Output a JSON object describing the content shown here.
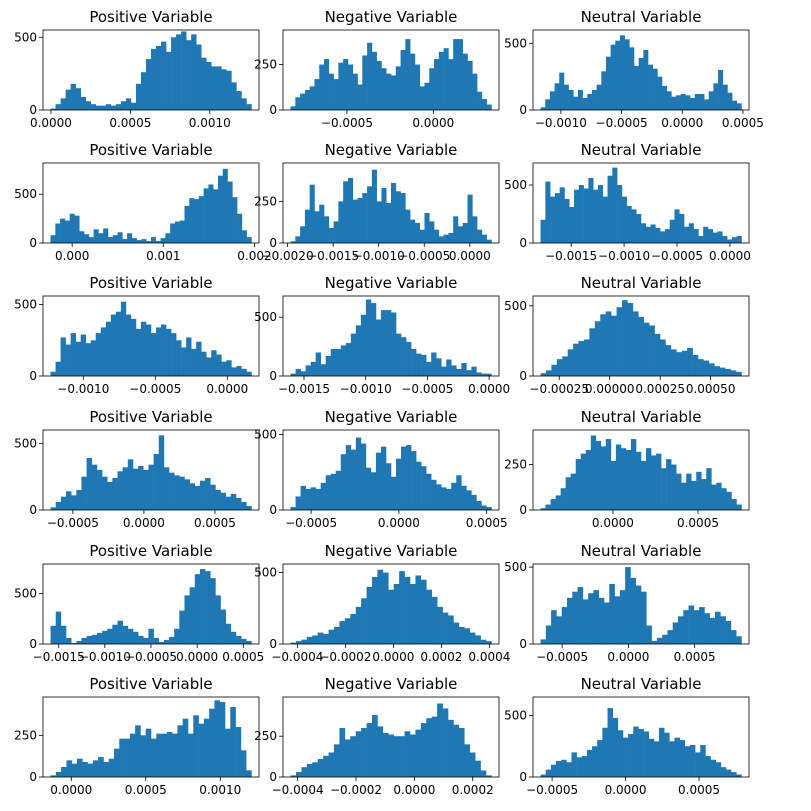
{
  "figure": {
    "bar_color": "#1f77b4",
    "axes_color": "#000000",
    "background": "#ffffff"
  },
  "chart_data": [
    {
      "type": "bar",
      "title": "Positive Variable",
      "xlim": [
        -5e-05,
        0.00131
      ],
      "ylim": [
        0,
        550
      ],
      "xticks": [
        0.0,
        0.0005,
        0.001
      ],
      "xtick_labels": [
        "0.0000",
        "0.0005",
        "0.0010"
      ],
      "yticks": [
        0,
        500
      ],
      "ytick_labels": [
        "0",
        "500"
      ],
      "values": [
        10,
        40,
        80,
        140,
        180,
        150,
        90,
        60,
        40,
        30,
        30,
        40,
        30,
        40,
        60,
        80,
        50,
        180,
        260,
        350,
        420,
        440,
        470,
        400,
        500,
        520,
        540,
        480,
        520,
        450,
        360,
        330,
        300,
        300,
        280,
        270,
        190,
        130,
        80,
        40
      ]
    },
    {
      "type": "bar",
      "title": "Negative Variable",
      "xlim": [
        -0.00087,
        0.00038
      ],
      "ylim": [
        0,
        440
      ],
      "xticks": [
        -0.0005,
        0.0
      ],
      "xtick_labels": [
        "−0.0005",
        "0.0000"
      ],
      "yticks": [
        0,
        250
      ],
      "ytick_labels": [
        "0",
        "250"
      ],
      "values": [
        20,
        70,
        90,
        110,
        130,
        170,
        250,
        280,
        200,
        170,
        260,
        280,
        250,
        200,
        140,
        300,
        370,
        320,
        270,
        230,
        200,
        190,
        240,
        330,
        390,
        310,
        250,
        130,
        150,
        230,
        280,
        320,
        340,
        280,
        390,
        390,
        310,
        270,
        200,
        100,
        60,
        30
      ]
    },
    {
      "type": "bar",
      "title": "Neutral Variable",
      "xlim": [
        -0.00123,
        0.00055
      ],
      "ylim": [
        0,
        600
      ],
      "xticks": [
        -0.001,
        -0.0005,
        0.0,
        0.0005
      ],
      "xtick_labels": [
        "−0.0010",
        "−0.0005",
        "0.0000",
        "0.0005"
      ],
      "yticks": [
        0,
        500
      ],
      "ytick_labels": [
        "0",
        "500"
      ],
      "values": [
        20,
        80,
        140,
        200,
        280,
        190,
        150,
        100,
        150,
        90,
        120,
        150,
        190,
        290,
        400,
        490,
        520,
        560,
        530,
        470,
        330,
        390,
        450,
        340,
        310,
        250,
        180,
        140,
        100,
        110,
        120,
        110,
        90,
        120,
        120,
        80,
        140,
        200,
        300,
        190,
        130,
        70,
        50
      ]
    },
    {
      "type": "bar",
      "title": "Positive Variable",
      "xlim": [
        -0.00032,
        0.00205
      ],
      "ylim": [
        0,
        820
      ],
      "xticks": [
        0.0,
        0.001,
        0.002
      ],
      "xtick_labels": [
        "0.000",
        "0.001",
        "0.002"
      ],
      "yticks": [
        0,
        500
      ],
      "ytick_labels": [
        "0",
        "500"
      ],
      "values": [
        80,
        200,
        250,
        230,
        300,
        280,
        120,
        90,
        60,
        140,
        100,
        150,
        60,
        80,
        110,
        40,
        100,
        50,
        30,
        40,
        20,
        60,
        20,
        50,
        100,
        200,
        220,
        230,
        380,
        460,
        450,
        480,
        560,
        600,
        550,
        690,
        760,
        630,
        470,
        300,
        130,
        60
      ]
    },
    {
      "type": "bar",
      "title": "Negative Variable",
      "xlim": [
        -0.00205,
        0.00032
      ],
      "ylim": [
        0,
        480
      ],
      "xticks": [
        -0.002,
        -0.0015,
        -0.001,
        -0.0005,
        0.0
      ],
      "xtick_labels": [
        "−0.0020",
        "−0.0015",
        "−0.0010",
        "−0.0005",
        "0.0000"
      ],
      "yticks": [
        0,
        250
      ],
      "ytick_labels": [
        "0",
        "250"
      ],
      "values": [
        10,
        40,
        100,
        200,
        350,
        190,
        230,
        160,
        90,
        130,
        250,
        370,
        390,
        260,
        270,
        300,
        340,
        440,
        250,
        330,
        240,
        360,
        310,
        300,
        200,
        140,
        120,
        80,
        180,
        130,
        80,
        40,
        50,
        60,
        160,
        100,
        120,
        290,
        160,
        80,
        50,
        20
      ]
    },
    {
      "type": "bar",
      "title": "Neutral Variable",
      "xlim": [
        -0.00186,
        0.00018
      ],
      "ylim": [
        0,
        690
      ],
      "xticks": [
        -0.0015,
        -0.001,
        -0.0005,
        0.0
      ],
      "xtick_labels": [
        "−0.0015",
        "−0.0010",
        "−0.0005",
        "0.0000"
      ],
      "yticks": [
        0,
        500
      ],
      "ytick_labels": [
        "0",
        "500"
      ],
      "values": [
        200,
        530,
        400,
        430,
        480,
        380,
        310,
        460,
        500,
        470,
        560,
        460,
        500,
        400,
        580,
        650,
        500,
        400,
        320,
        290,
        250,
        170,
        140,
        160,
        130,
        100,
        120,
        200,
        290,
        250,
        140,
        170,
        120,
        60,
        140,
        120,
        90,
        100,
        60,
        30,
        50,
        60
      ]
    },
    {
      "type": "bar",
      "title": "Positive Variable",
      "xlim": [
        -0.00128,
        0.00022
      ],
      "ylim": [
        0,
        560
      ],
      "xticks": [
        -0.001,
        -0.0005,
        0.0
      ],
      "xtick_labels": [
        "−0.0010",
        "−0.0005",
        "0.0000"
      ],
      "yticks": [
        0,
        500
      ],
      "ytick_labels": [
        "0",
        "500"
      ],
      "values": [
        30,
        100,
        270,
        220,
        300,
        240,
        290,
        230,
        250,
        300,
        340,
        380,
        430,
        450,
        520,
        430,
        400,
        330,
        380,
        360,
        300,
        340,
        360,
        330,
        300,
        250,
        200,
        270,
        190,
        240,
        170,
        130,
        180,
        150,
        100,
        110,
        60,
        70,
        50,
        30
      ]
    },
    {
      "type": "bar",
      "title": "Negative Variable",
      "xlim": [
        -0.00167,
        8e-05
      ],
      "ylim": [
        0,
        680
      ],
      "xticks": [
        -0.0015,
        -0.001,
        -0.0005,
        0.0
      ],
      "xtick_labels": [
        "−0.0015",
        "−0.0010",
        "−0.0005",
        "0.0000"
      ],
      "yticks": [
        0,
        500
      ],
      "ytick_labels": [
        "0",
        "500"
      ],
      "values": [
        20,
        60,
        40,
        90,
        120,
        200,
        100,
        170,
        230,
        230,
        260,
        280,
        360,
        430,
        520,
        650,
        620,
        480,
        560,
        560,
        540,
        360,
        330,
        290,
        230,
        190,
        180,
        120,
        200,
        150,
        80,
        140,
        90,
        60,
        110,
        50,
        80,
        30,
        20,
        20
      ]
    },
    {
      "type": "bar",
      "title": "Neutral Variable",
      "xlim": [
        -0.00038,
        0.00069
      ],
      "ylim": [
        0,
        570
      ],
      "xticks": [
        -0.00025,
        0.0,
        0.00025,
        0.0005
      ],
      "xtick_labels": [
        "−0.00025",
        "0.00000",
        "0.00025",
        "0.00050"
      ],
      "yticks": [
        0,
        500
      ],
      "ytick_labels": [
        "0",
        "500"
      ],
      "values": [
        20,
        40,
        80,
        120,
        140,
        190,
        230,
        250,
        260,
        340,
        390,
        440,
        460,
        430,
        490,
        540,
        520,
        460,
        420,
        380,
        360,
        300,
        260,
        220,
        190,
        170,
        180,
        200,
        150,
        120,
        110,
        90,
        70,
        60,
        50,
        40,
        30
      ]
    },
    {
      "type": "bar",
      "title": "Positive Variable",
      "xlim": [
        -0.00071,
        0.00081
      ],
      "ylim": [
        0,
        600
      ],
      "xticks": [
        -0.0005,
        0.0,
        0.0005
      ],
      "xtick_labels": [
        "−0.0005",
        "0.0000",
        "0.0005"
      ],
      "yticks": [
        0,
        500
      ],
      "ytick_labels": [
        "0",
        "500"
      ],
      "values": [
        20,
        60,
        100,
        140,
        110,
        150,
        250,
        390,
        340,
        300,
        250,
        210,
        240,
        290,
        320,
        380,
        310,
        330,
        300,
        340,
        420,
        560,
        320,
        280,
        260,
        250,
        230,
        200,
        180,
        220,
        240,
        190,
        150,
        130,
        100,
        120,
        90,
        60,
        30
      ]
    },
    {
      "type": "bar",
      "title": "Negative Variable",
      "xlim": [
        -0.00066,
        0.00057
      ],
      "ylim": [
        0,
        530
      ],
      "xticks": [
        -0.0005,
        0.0,
        0.0005
      ],
      "xtick_labels": [
        "−0.0005",
        "0.0000",
        "0.0005"
      ],
      "yticks": [
        0,
        500
      ],
      "ytick_labels": [
        "0",
        "500"
      ],
      "values": [
        20,
        90,
        160,
        140,
        150,
        140,
        180,
        230,
        240,
        260,
        370,
        430,
        400,
        480,
        440,
        280,
        250,
        380,
        420,
        310,
        220,
        340,
        420,
        430,
        390,
        320,
        290,
        240,
        200,
        170,
        150,
        140,
        180,
        230,
        160,
        130,
        100,
        60,
        30,
        20
      ]
    },
    {
      "type": "bar",
      "title": "Neutral Variable",
      "xlim": [
        -0.00047,
        0.0008
      ],
      "ylim": [
        0,
        440
      ],
      "xticks": [
        0.0,
        0.0005
      ],
      "xtick_labels": [
        "0.0000",
        "0.0005"
      ],
      "yticks": [
        0,
        250
      ],
      "ytick_labels": [
        "0",
        "250"
      ],
      "values": [
        10,
        30,
        60,
        80,
        120,
        180,
        200,
        280,
        310,
        330,
        410,
        380,
        350,
        390,
        270,
        360,
        340,
        330,
        390,
        320,
        270,
        340,
        300,
        310,
        230,
        280,
        250,
        200,
        150,
        200,
        160,
        210,
        170,
        230,
        140,
        150,
        120,
        100,
        60,
        30
      ]
    },
    {
      "type": "bar",
      "title": "Positive Variable",
      "xlim": [
        -0.00167,
        0.00067
      ],
      "ylim": [
        0,
        790
      ],
      "xticks": [
        -0.0015,
        -0.001,
        -0.0005,
        0.0,
        0.0005
      ],
      "xtick_labels": [
        "−0.0015",
        "−0.0010",
        "−0.0005",
        "0.0000",
        "0.0005"
      ],
      "yticks": [
        0,
        500
      ],
      "ytick_labels": [
        "0",
        "500"
      ],
      "values": [
        180,
        320,
        180,
        60,
        10,
        30,
        60,
        80,
        90,
        110,
        130,
        150,
        190,
        230,
        180,
        150,
        120,
        80,
        60,
        150,
        60,
        20,
        40,
        70,
        150,
        330,
        480,
        560,
        690,
        740,
        720,
        650,
        480,
        340,
        200,
        120,
        80,
        50,
        30
      ]
    },
    {
      "type": "bar",
      "title": "Negative Variable",
      "xlim": [
        -0.00046,
        0.00044
      ],
      "ylim": [
        0,
        560
      ],
      "xticks": [
        -0.0004,
        -0.0002,
        0.0,
        0.0002,
        0.0004
      ],
      "xtick_labels": [
        "−0.0004",
        "−0.0002",
        "0.0000",
        "0.0002",
        "0.0004"
      ],
      "yticks": [
        0,
        500
      ],
      "ytick_labels": [
        "0",
        "500"
      ],
      "values": [
        10,
        20,
        30,
        50,
        60,
        80,
        70,
        100,
        120,
        160,
        180,
        210,
        260,
        320,
        400,
        470,
        520,
        500,
        380,
        420,
        510,
        470,
        420,
        480,
        450,
        380,
        330,
        260,
        220,
        200,
        150,
        120,
        110,
        80,
        60,
        30,
        20
      ]
    },
    {
      "type": "bar",
      "title": "Neutral Variable",
      "xlim": [
        -0.00072,
        0.00091
      ],
      "ylim": [
        0,
        520
      ],
      "xticks": [
        -0.0005,
        0.0,
        0.0005
      ],
      "xtick_labels": [
        "−0.0005",
        "0.0000",
        "0.0005"
      ],
      "yticks": [
        0,
        500
      ],
      "ytick_labels": [
        "0",
        "500"
      ],
      "values": [
        30,
        120,
        220,
        180,
        240,
        300,
        340,
        370,
        290,
        330,
        350,
        300,
        270,
        390,
        310,
        350,
        500,
        430,
        380,
        340,
        120,
        20,
        40,
        60,
        90,
        140,
        180,
        220,
        250,
        220,
        240,
        200,
        170,
        210,
        180,
        150,
        90,
        50
      ]
    },
    {
      "type": "bar",
      "title": "Positive Variable",
      "xlim": [
        -0.00019,
        0.00126
      ],
      "ylim": [
        0,
        480
      ],
      "xticks": [
        0.0,
        0.0005,
        0.001
      ],
      "xtick_labels": [
        "0.0000",
        "0.0005",
        "0.0010"
      ],
      "yticks": [
        0,
        250
      ],
      "ytick_labels": [
        "0",
        "250"
      ],
      "values": [
        10,
        30,
        60,
        100,
        80,
        110,
        90,
        80,
        100,
        120,
        90,
        110,
        170,
        230,
        230,
        260,
        310,
        250,
        290,
        230,
        260,
        260,
        270,
        260,
        310,
        350,
        260,
        370,
        320,
        350,
        410,
        460,
        450,
        290,
        420,
        300,
        160,
        40
      ]
    },
    {
      "type": "bar",
      "title": "Negative Variable",
      "xlim": [
        -0.00045,
        0.00029
      ],
      "ylim": [
        0,
        490
      ],
      "xticks": [
        -0.0004,
        -0.0002,
        0.0,
        0.0002
      ],
      "xtick_labels": [
        "−0.0004",
        "−0.0002",
        "0.0000",
        "0.0002"
      ],
      "yticks": [
        0,
        250
      ],
      "ytick_labels": [
        "0",
        "250"
      ],
      "values": [
        10,
        30,
        60,
        80,
        90,
        110,
        130,
        150,
        200,
        300,
        230,
        250,
        280,
        300,
        330,
        380,
        310,
        270,
        260,
        250,
        250,
        280,
        260,
        290,
        330,
        360,
        370,
        450,
        420,
        350,
        320,
        300,
        200,
        150,
        100,
        40,
        10
      ]
    },
    {
      "type": "bar",
      "title": "Neutral Variable",
      "xlim": [
        -0.00063,
        0.00084
      ],
      "ylim": [
        0,
        650
      ],
      "xticks": [
        -0.0005,
        0.0,
        0.0005
      ],
      "xtick_labels": [
        "−0.0005",
        "0.0000",
        "0.0005"
      ],
      "yticks": [
        0,
        500
      ],
      "ytick_labels": [
        "0",
        "500"
      ],
      "values": [
        20,
        60,
        100,
        130,
        140,
        120,
        200,
        160,
        170,
        220,
        250,
        300,
        400,
        560,
        480,
        380,
        320,
        350,
        410,
        390,
        370,
        310,
        290,
        400,
        360,
        290,
        320,
        300,
        250,
        260,
        200,
        260,
        170,
        140,
        120,
        80,
        60,
        40,
        20
      ]
    }
  ]
}
